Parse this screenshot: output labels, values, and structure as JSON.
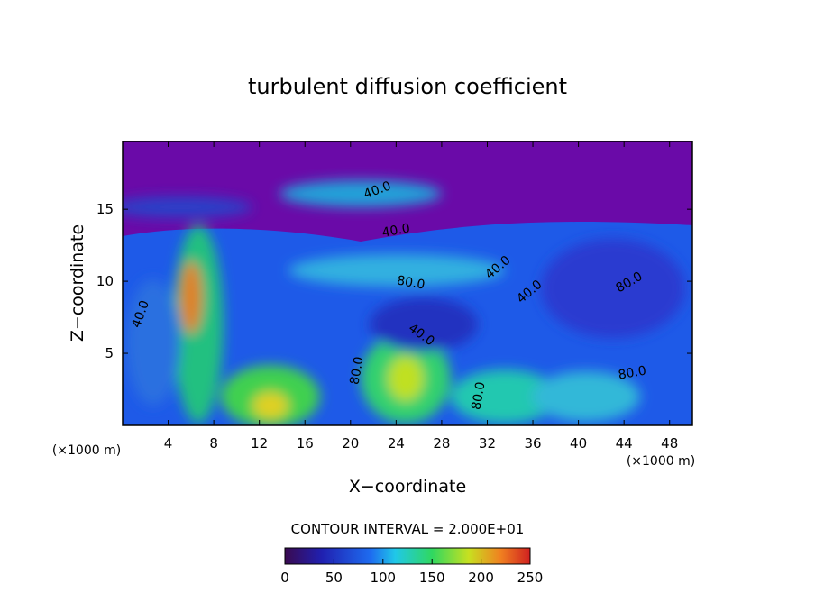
{
  "chart_data": {
    "type": "contour",
    "title": "turbulent diffusion coefficient",
    "xlabel": "X−coordinate",
    "ylabel": "Z−coordinate",
    "x_unit": "(×1000 m)",
    "y_unit": "(×1000 m)",
    "xlim": [
      0,
      50
    ],
    "ylim": [
      0,
      19.7
    ],
    "xticks": [
      4,
      8,
      12,
      16,
      20,
      24,
      28,
      32,
      36,
      40,
      44,
      48
    ],
    "yticks": [
      5,
      10,
      15
    ],
    "contour_interval_label": "CONTOUR INTERVAL = 2.000E+01",
    "colorbar": {
      "zlim": [
        0,
        250
      ],
      "ticks": [
        0,
        50,
        100,
        150,
        200,
        250
      ]
    },
    "contour_labels": [
      "40.0",
      "40.0",
      "40.0",
      "80.0",
      "40.0",
      "40.0",
      "40.0",
      "80.0",
      "80.0",
      "80.0",
      "80.0"
    ]
  }
}
